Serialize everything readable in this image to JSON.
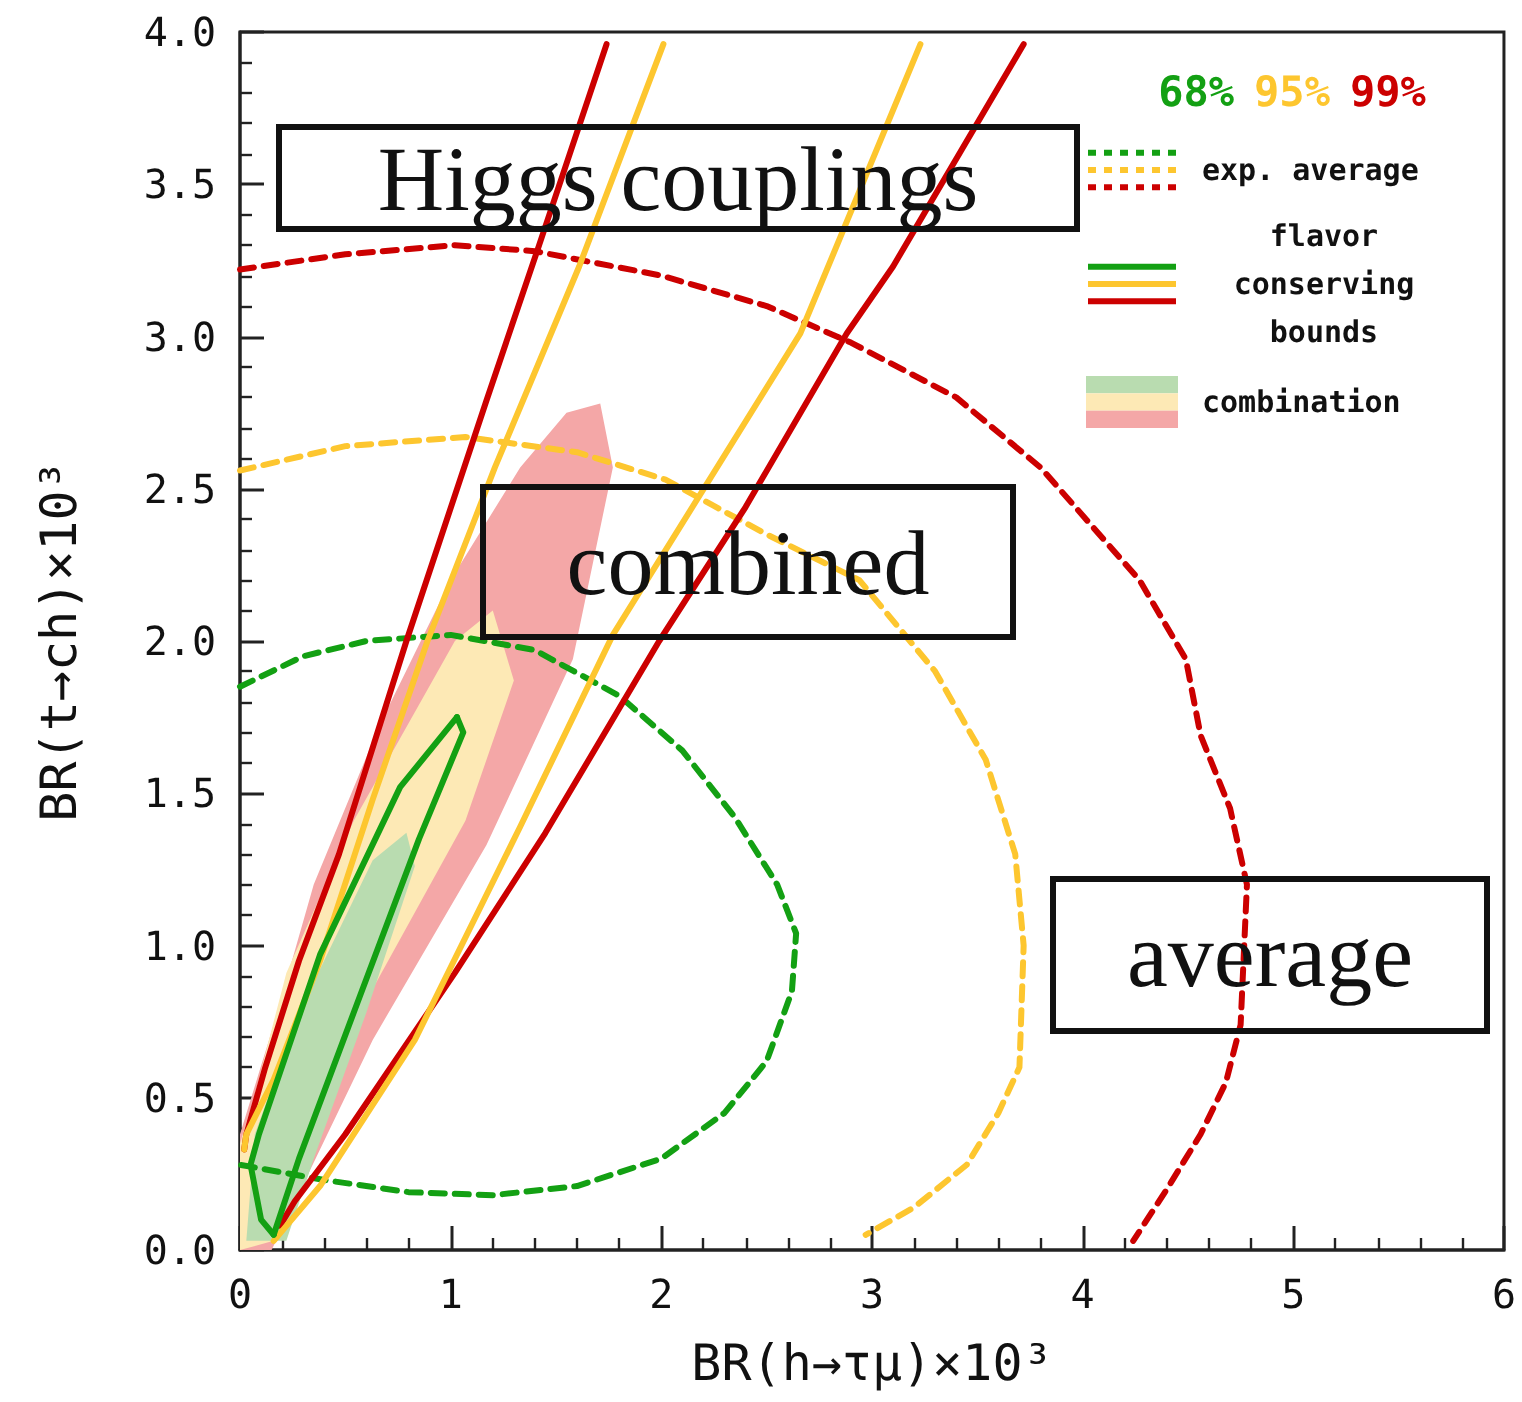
{
  "chart_data": {
    "type": "line",
    "xlabel": "BR(h→τμ)×10³",
    "ylabel": "BR(t→ch)×10³",
    "xlim": [
      0,
      6
    ],
    "xticks": [
      0,
      1,
      2,
      3,
      4,
      5,
      6
    ],
    "ylim": [
      0,
      4
    ],
    "yticks": [
      {
        "value": 0,
        "label": "0.0"
      },
      {
        "value": 0.5,
        "label": "0.5"
      },
      {
        "value": 1,
        "label": "1.0"
      },
      {
        "value": 1.5,
        "label": "1.5"
      },
      {
        "value": 2,
        "label": "2.0"
      },
      {
        "value": 2.5,
        "label": "2.5"
      },
      {
        "value": 3,
        "label": "3.0"
      },
      {
        "value": 3.5,
        "label": "3.5"
      },
      {
        "value": 4,
        "label": "4.0"
      }
    ],
    "marker": "none",
    "annotations": [
      "Higgs couplings",
      "combined",
      "average",
      "68%",
      "95%",
      "99%",
      "exp. average",
      "flavor conserving bounds",
      "combination"
    ],
    "series": [
      {
        "line_style": "dashed",
        "color": "#13a013",
        "x": [
          0,
          0.3,
          0.6,
          1.0,
          1.4,
          1.8,
          2.1,
          2.35,
          2.55,
          2.64,
          2.62,
          2.5,
          2.3,
          2.0,
          1.6,
          1.2,
          0.8,
          0.4,
          0
        ],
        "values": [
          1.85,
          1.95,
          2.0,
          2.02,
          1.97,
          1.82,
          1.64,
          1.42,
          1.2,
          1.04,
          0.85,
          0.62,
          0.45,
          0.3,
          0.21,
          0.18,
          0.19,
          0.23,
          0.28
        ]
      },
      {
        "line_style": "dashed",
        "color": "#fdc62f",
        "x": [
          0,
          0.5,
          1.07,
          1.6,
          2.02,
          2.5,
          2.94,
          3.3,
          3.54,
          3.68,
          3.72,
          3.7,
          3.6,
          3.45,
          3.2,
          2.97
        ],
        "values": [
          2.56,
          2.64,
          2.67,
          2.62,
          2.53,
          2.35,
          2.2,
          1.9,
          1.61,
          1.3,
          1.0,
          0.6,
          0.45,
          0.28,
          0.14,
          0.05
        ]
      },
      {
        "line_style": "dashed",
        "color": "#cc0000",
        "x": [
          0,
          0.5,
          1.02,
          1.4,
          2.0,
          2.5,
          2.9,
          3.4,
          3.8,
          4.27,
          4.49,
          4.56,
          4.7,
          4.78,
          4.75,
          4.68,
          4.56,
          4.4,
          4.24
        ],
        "values": [
          3.22,
          3.27,
          3.3,
          3.28,
          3.2,
          3.1,
          2.98,
          2.8,
          2.57,
          2.2,
          1.94,
          1.69,
          1.45,
          1.2,
          0.74,
          0.55,
          0.38,
          0.2,
          0.03
        ]
      },
      {
        "type": "area",
        "color": "#f4a7a7",
        "x": [
          0,
          0.16,
          0.35,
          0.66,
          1.0,
          1.33,
          1.55,
          1.71,
          1.77,
          1.58,
          1.17,
          0.63,
          0.15,
          0
        ],
        "values": [
          0.38,
          0.74,
          1.2,
          1.72,
          2.2,
          2.57,
          2.75,
          2.78,
          2.57,
          1.94,
          1.33,
          0.69,
          0,
          0
        ]
      },
      {
        "type": "area",
        "color": "#fde9b5",
        "x": [
          0,
          0.07,
          0.22,
          0.54,
          1.02,
          1.2,
          1.3,
          1.07,
          0.6,
          0.16,
          0
        ],
        "values": [
          0.35,
          0.51,
          0.91,
          1.41,
          2.0,
          2.1,
          1.87,
          1.41,
          0.82,
          0.03,
          0
        ]
      },
      {
        "type": "area",
        "color": "#b9dcb0",
        "x": [
          0.03,
          0.07,
          0.28,
          0.63,
          0.79,
          0.83,
          0.6,
          0.35,
          0.22
        ],
        "values": [
          0.03,
          0.38,
          0.78,
          1.28,
          1.37,
          1.26,
          0.78,
          0.3,
          0.03
        ]
      },
      {
        "line_style": "solid",
        "color": "#cc0000",
        "x": [
          0.02,
          0.03,
          0.12,
          0.28,
          0.47,
          0.79,
          1.17,
          1.42,
          1.74
        ],
        "values": [
          0.33,
          0.38,
          0.6,
          0.95,
          1.3,
          2.0,
          2.79,
          3.3,
          3.96
        ]
      },
      {
        "line_style": "solid",
        "color": "#cc0000",
        "x": [
          0.19,
          0.26,
          0.5,
          1.02,
          1.45,
          1.99,
          2.4,
          2.88,
          3.1,
          3.72
        ],
        "values": [
          0.08,
          0.16,
          0.38,
          0.91,
          1.37,
          2.0,
          2.44,
          3.01,
          3.23,
          3.96
        ]
      },
      {
        "line_style": "solid",
        "color": "#fdc62f",
        "x": [
          0.02,
          0.03,
          0.16,
          0.38,
          0.63,
          0.89,
          1.21,
          1.61,
          2.01
        ],
        "values": [
          0.33,
          0.38,
          0.56,
          0.95,
          1.48,
          2.0,
          2.57,
          3.23,
          3.96
        ]
      },
      {
        "line_style": "solid",
        "color": "#fdc62f",
        "x": [
          0.16,
          0.38,
          0.83,
          1.33,
          1.77,
          2.66,
          3.23
        ],
        "values": [
          0.03,
          0.21,
          0.69,
          1.39,
          2.02,
          3.01,
          3.96
        ]
      },
      {
        "line_style": "solid",
        "color": "#13a013",
        "x": [
          0.16,
          0.28,
          0.54,
          0.85,
          1.06,
          1.03
        ],
        "values": [
          0.05,
          0.3,
          0.78,
          1.35,
          1.7,
          1.75
        ]
      },
      {
        "line_style": "solid",
        "color": "#13a013",
        "x": [
          1.03,
          0.76,
          0.38,
          0.09,
          0.05,
          0.1,
          0.16
        ],
        "values": [
          1.75,
          1.52,
          0.97,
          0.38,
          0.28,
          0.1,
          0.05
        ]
      }
    ]
  }
}
